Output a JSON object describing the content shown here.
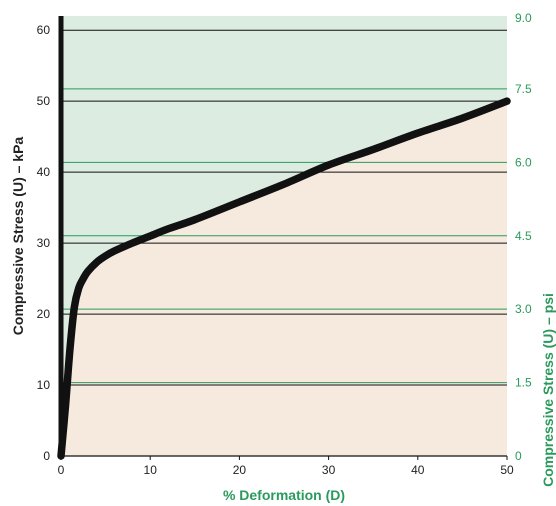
{
  "chart_data": {
    "type": "line",
    "title": "",
    "xlabel": "% Deformation (D)",
    "ylabel": "Compressive Stress (U) – kPa",
    "ylabel_right": "Compressive Stress (U) – psi",
    "xlim": [
      0,
      50
    ],
    "ylim": [
      0,
      62
    ],
    "ylim_right_psi": [
      0,
      8.99
    ],
    "x_ticks": [
      "0",
      "10",
      "20",
      "30",
      "40",
      "50"
    ],
    "y_ticks": [
      "0",
      "10",
      "20",
      "30",
      "40",
      "50",
      "60"
    ],
    "y_right_ticks": [
      "0",
      "1.5",
      "3.0",
      "4.5",
      "6.0",
      "7.5",
      "9.0"
    ],
    "grid": true,
    "series": [
      {
        "x": [
          0,
          0.5,
          1,
          1.5,
          2,
          2.5,
          3,
          4,
          5,
          6,
          8,
          10,
          12,
          15,
          20,
          25,
          30,
          35,
          40,
          45,
          50
        ],
        "y": [
          0,
          7,
          15,
          21,
          23.7,
          25,
          26,
          27.3,
          28.2,
          28.9,
          30,
          31,
          32,
          33.3,
          35.8,
          38.3,
          41,
          43.2,
          45.5,
          47.6,
          50
        ]
      }
    ],
    "colors": {
      "curve": "#111111",
      "upper_fill": "#dcece1",
      "lower_fill": "#f6e9de",
      "left_axis": "#111111",
      "psi_accent": "#2a9a5c",
      "kpa_grid": "#111111"
    }
  }
}
